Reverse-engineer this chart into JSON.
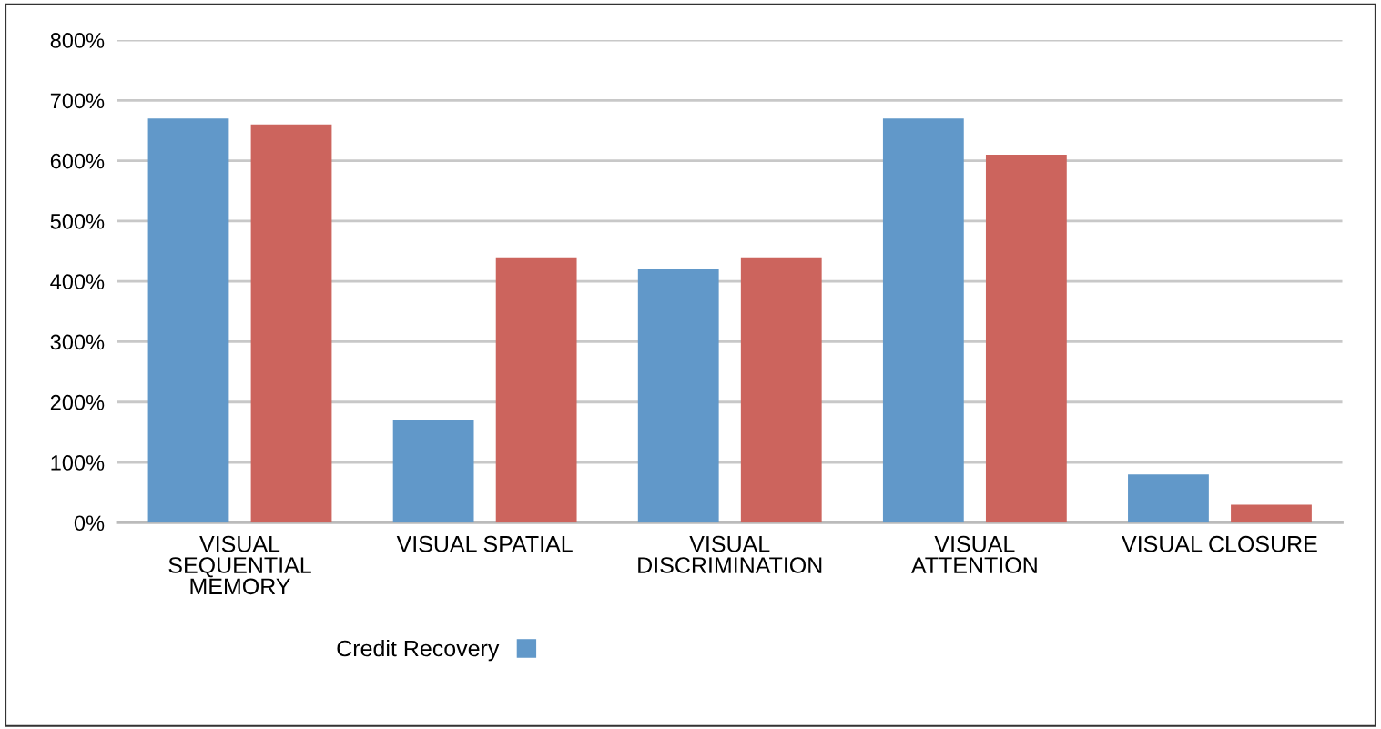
{
  "chart_data": {
    "type": "bar",
    "categories": [
      "VISUAL\nSEQUENTIAL\nMEMORY",
      "VISUAL SPATIAL",
      "VISUAL\nDISCRIMINATION",
      "VISUAL\nATTENTION",
      "VISUAL CLOSURE"
    ],
    "series": [
      {
        "name": "Credit Recovery",
        "color": "#6198c9",
        "values": [
          670,
          170,
          420,
          670,
          80
        ]
      },
      {
        "color": "#cc645d",
        "values": [
          660,
          440,
          440,
          610,
          30
        ]
      }
    ],
    "ylim": [
      0,
      800
    ],
    "yticks": [
      {
        "value": 0,
        "label": "0%"
      },
      {
        "value": 100,
        "label": "100%"
      },
      {
        "value": 200,
        "label": "200%"
      },
      {
        "value": 300,
        "label": "300%"
      },
      {
        "value": 400,
        "label": "400%"
      },
      {
        "value": 500,
        "label": "500%"
      },
      {
        "value": 600,
        "label": "600%"
      },
      {
        "value": 700,
        "label": "700%"
      },
      {
        "value": 800,
        "label": "800%"
      }
    ],
    "grid": "y",
    "legend": "bottom"
  }
}
